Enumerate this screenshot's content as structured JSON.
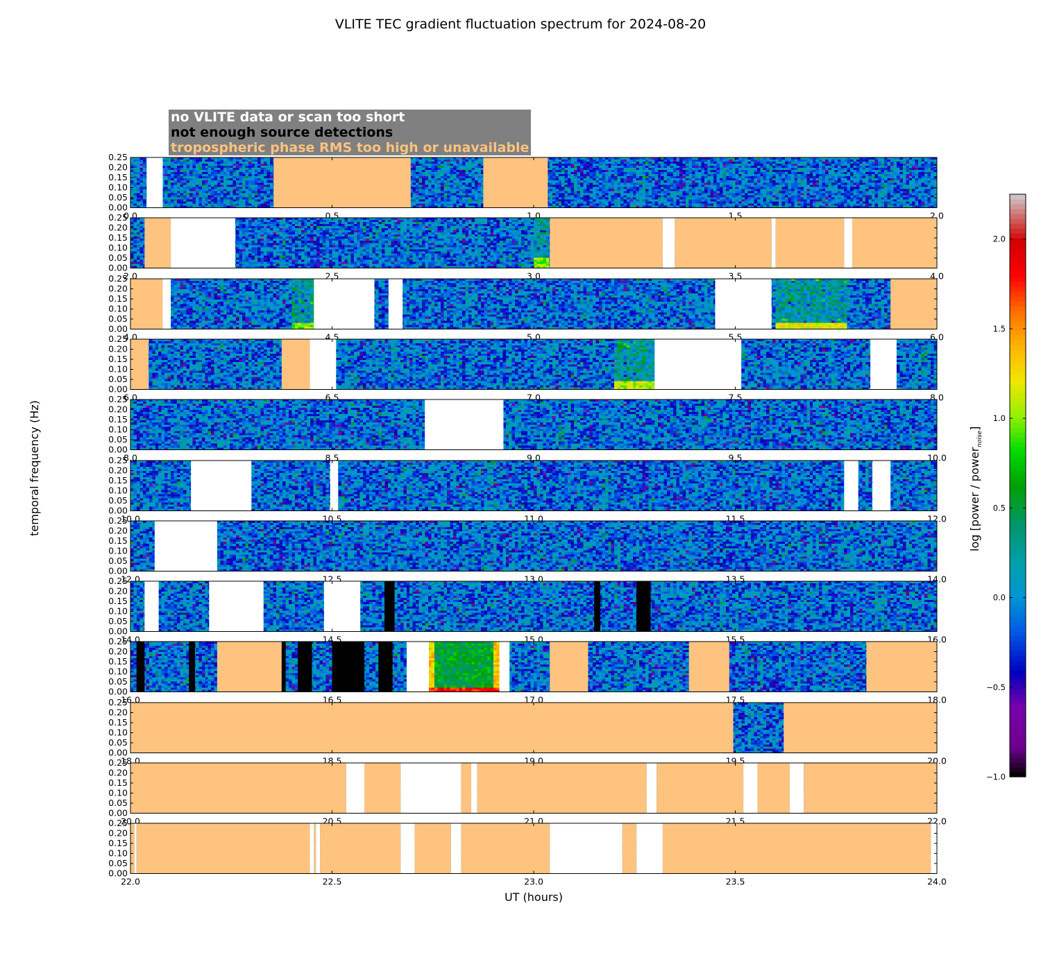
{
  "title": "VLITE TEC gradient fluctuation spectrum for 2024-08-20",
  "legend": {
    "no_data": "no VLITE data or scan too short",
    "no_sources": "not enough source detections",
    "tropo": "tropospheric phase RMS too high or unavailable",
    "colors": {
      "no_data": "#ffffff",
      "no_sources": "#000000",
      "tropo": "#fdc37f",
      "box": "#808080"
    }
  },
  "axes": {
    "xlabel": "UT (hours)",
    "ylabel": "temporal frequency (Hz)",
    "yticks": [
      "0.00",
      "0.05",
      "0.10",
      "0.15",
      "0.20",
      "0.25"
    ],
    "ylim": [
      0,
      0.25
    ]
  },
  "colorbar": {
    "label_main": "log [power / power",
    "label_sub": "noise",
    "label_end": "]",
    "ticks": [
      "−1.0",
      "−0.5",
      "0.0",
      "0.5",
      "1.0",
      "1.5",
      "2.0"
    ],
    "tick_values": [
      -1.0,
      -0.5,
      0.0,
      0.5,
      1.0,
      1.5,
      2.0
    ],
    "range": [
      -1.0,
      2.25
    ]
  },
  "chart_data": {
    "type": "heatmap",
    "title": "VLITE TEC gradient fluctuation spectrum for 2024-08-20",
    "xlabel": "UT (hours)",
    "ylabel": "temporal frequency (Hz)",
    "panels": [
      {
        "xlim": [
          0,
          2
        ],
        "xticks": [
          "0.0",
          "0.5",
          "1.0",
          "1.5",
          "2.0"
        ],
        "masks": [
          {
            "type": "nodata",
            "start": 0.04,
            "end": 0.08
          },
          {
            "type": "tropo",
            "start": 0.355,
            "end": 0.695
          },
          {
            "type": "tropo",
            "start": 0.875,
            "end": 1.035
          }
        ]
      },
      {
        "xlim": [
          2,
          4
        ],
        "xticks": [
          "2.0",
          "2.5",
          "3.0",
          "3.5",
          "4.0"
        ],
        "masks": [
          {
            "type": "tropo",
            "start": 2.035,
            "end": 2.1
          },
          {
            "type": "nodata",
            "start": 2.1,
            "end": 2.26
          },
          {
            "type": "tropo",
            "start": 3.04,
            "end": 3.32
          },
          {
            "type": "nodata",
            "start": 3.32,
            "end": 3.35
          },
          {
            "type": "tropo",
            "start": 3.35,
            "end": 3.59
          },
          {
            "type": "nodata",
            "start": 3.59,
            "end": 3.6
          },
          {
            "type": "tropo",
            "start": 3.6,
            "end": 3.77
          },
          {
            "type": "nodata",
            "start": 3.77,
            "end": 3.79
          },
          {
            "type": "tropo",
            "start": 3.79,
            "end": 4.0
          }
        ]
      },
      {
        "xlim": [
          4,
          6
        ],
        "xticks": [
          "4.0",
          "4.5",
          "5.0",
          "5.5",
          "6.0"
        ],
        "masks": [
          {
            "type": "tropo",
            "start": 4.0,
            "end": 4.08
          },
          {
            "type": "nodata",
            "start": 4.08,
            "end": 4.1
          },
          {
            "type": "nodata",
            "start": 4.455,
            "end": 4.605
          },
          {
            "type": "nodata",
            "start": 4.64,
            "end": 4.675
          },
          {
            "type": "nodata",
            "start": 5.45,
            "end": 5.59
          },
          {
            "type": "tropo",
            "start": 5.885,
            "end": 6.0
          }
        ]
      },
      {
        "xlim": [
          6,
          8
        ],
        "xticks": [
          "6.0",
          "6.5",
          "7.0",
          "7.5",
          "8.0"
        ],
        "masks": [
          {
            "type": "tropo",
            "start": 6.0,
            "end": 6.045
          },
          {
            "type": "tropo",
            "start": 6.375,
            "end": 6.445
          },
          {
            "type": "nodata",
            "start": 6.445,
            "end": 6.51
          },
          {
            "type": "nodata",
            "start": 7.3,
            "end": 7.515
          },
          {
            "type": "nodata",
            "start": 7.835,
            "end": 7.9
          }
        ]
      },
      {
        "xlim": [
          8,
          10
        ],
        "xticks": [
          "8.0",
          "8.5",
          "9.0",
          "9.5",
          "10.0"
        ],
        "masks": [
          {
            "type": "nodata",
            "start": 8.73,
            "end": 8.925
          }
        ]
      },
      {
        "xlim": [
          10,
          12
        ],
        "xticks": [
          "10.0",
          "10.5",
          "11.0",
          "11.5",
          "12.0"
        ],
        "masks": [
          {
            "type": "nodata",
            "start": 10.15,
            "end": 10.3
          },
          {
            "type": "nodata",
            "start": 10.495,
            "end": 10.515
          },
          {
            "type": "nodata",
            "start": 11.77,
            "end": 11.805
          },
          {
            "type": "nodata",
            "start": 11.84,
            "end": 11.885
          }
        ]
      },
      {
        "xlim": [
          12,
          14
        ],
        "xticks": [
          "12.0",
          "12.5",
          "13.0",
          "13.5",
          "14.0"
        ],
        "masks": [
          {
            "type": "nodata",
            "start": 12.06,
            "end": 12.215
          }
        ]
      },
      {
        "xlim": [
          14,
          16
        ],
        "xticks": [
          "14.0",
          "14.5",
          "15.0",
          "15.5",
          "16.0"
        ],
        "masks": [
          {
            "type": "nodata",
            "start": 14.035,
            "end": 14.07
          },
          {
            "type": "nodata",
            "start": 14.195,
            "end": 14.33
          },
          {
            "type": "nodata",
            "start": 14.48,
            "end": 14.57
          },
          {
            "type": "nosrc",
            "start": 14.63,
            "end": 14.655
          },
          {
            "type": "nosrc",
            "start": 15.15,
            "end": 15.165
          },
          {
            "type": "nosrc",
            "start": 15.255,
            "end": 15.29
          }
        ]
      },
      {
        "xlim": [
          16,
          18
        ],
        "xticks": [
          "16.0",
          "16.5",
          "17.0",
          "17.5",
          "18.0"
        ],
        "masks": [
          {
            "type": "nosrc",
            "start": 16.015,
            "end": 16.035
          },
          {
            "type": "nosrc",
            "start": 16.145,
            "end": 16.16
          },
          {
            "type": "tropo",
            "start": 16.215,
            "end": 16.375
          },
          {
            "type": "nosrc",
            "start": 16.375,
            "end": 16.385
          },
          {
            "type": "nosrc",
            "start": 16.415,
            "end": 16.45
          },
          {
            "type": "nosrc",
            "start": 16.5,
            "end": 16.58
          },
          {
            "type": "nosrc",
            "start": 16.615,
            "end": 16.65
          },
          {
            "type": "nodata",
            "start": 16.685,
            "end": 16.74
          },
          {
            "type": "nodata",
            "start": 16.915,
            "end": 16.94
          },
          {
            "type": "tropo",
            "start": 17.04,
            "end": 17.135
          },
          {
            "type": "tropo",
            "start": 17.385,
            "end": 17.485
          },
          {
            "type": "tropo",
            "start": 17.825,
            "end": 18.0
          }
        ]
      },
      {
        "xlim": [
          18,
          20
        ],
        "xticks": [
          "18.0",
          "18.5",
          "19.0",
          "19.5",
          "20.0"
        ],
        "masks": [
          {
            "type": "tropo",
            "start": 18.0,
            "end": 19.495
          },
          {
            "type": "tropo",
            "start": 19.62,
            "end": 20.0
          }
        ]
      },
      {
        "xlim": [
          20,
          22
        ],
        "xticks": [
          "20.0",
          "20.5",
          "21.0",
          "21.5",
          "22.0"
        ],
        "masks": [
          {
            "type": "tropo",
            "start": 20.0,
            "end": 20.535
          },
          {
            "type": "nodata",
            "start": 20.535,
            "end": 20.58
          },
          {
            "type": "tropo",
            "start": 20.58,
            "end": 20.67
          },
          {
            "type": "nodata",
            "start": 20.67,
            "end": 20.82
          },
          {
            "type": "tropo",
            "start": 20.82,
            "end": 20.845
          },
          {
            "type": "nodata",
            "start": 20.845,
            "end": 20.86
          },
          {
            "type": "tropo",
            "start": 20.86,
            "end": 21.28
          },
          {
            "type": "nodata",
            "start": 21.28,
            "end": 21.305
          },
          {
            "type": "tropo",
            "start": 21.305,
            "end": 21.52
          },
          {
            "type": "nodata",
            "start": 21.52,
            "end": 21.555
          },
          {
            "type": "tropo",
            "start": 21.555,
            "end": 21.635
          },
          {
            "type": "nodata",
            "start": 21.635,
            "end": 21.67
          },
          {
            "type": "tropo",
            "start": 21.67,
            "end": 22.0
          }
        ]
      },
      {
        "xlim": [
          22,
          24
        ],
        "xticks": [
          "22.0",
          "22.5",
          "23.0",
          "23.5",
          "24.0"
        ],
        "masks": [
          {
            "type": "tropo",
            "start": 22.0,
            "end": 22.01
          },
          {
            "type": "nodata",
            "start": 22.01,
            "end": 22.015
          },
          {
            "type": "tropo",
            "start": 22.015,
            "end": 22.445
          },
          {
            "type": "nodata",
            "start": 22.445,
            "end": 22.455
          },
          {
            "type": "tropo",
            "start": 22.455,
            "end": 22.46
          },
          {
            "type": "nodata",
            "start": 22.46,
            "end": 22.47
          },
          {
            "type": "tropo",
            "start": 22.47,
            "end": 22.67
          },
          {
            "type": "nodata",
            "start": 22.67,
            "end": 22.705
          },
          {
            "type": "tropo",
            "start": 22.705,
            "end": 22.795
          },
          {
            "type": "nodata",
            "start": 22.795,
            "end": 22.82
          },
          {
            "type": "tropo",
            "start": 22.82,
            "end": 23.04
          },
          {
            "type": "nodata",
            "start": 23.04,
            "end": 23.22
          },
          {
            "type": "tropo",
            "start": 23.22,
            "end": 23.255
          },
          {
            "type": "nodata",
            "start": 23.255,
            "end": 23.32
          },
          {
            "type": "tropo",
            "start": 23.32,
            "end": 23.985
          },
          {
            "type": "nodata",
            "start": 23.985,
            "end": 24.0
          }
        ]
      }
    ],
    "hotspots": [
      {
        "x": 16.74,
        "x2": 16.915,
        "level": 1.8,
        "depth": 0.02,
        "note": "strong low-frequency power"
      },
      {
        "x": 4.4,
        "x2": 4.46,
        "level": 1.0,
        "depth": 0.03
      },
      {
        "x": 5.6,
        "x2": 5.78,
        "level": 1.2,
        "depth": 0.03
      },
      {
        "x": 7.2,
        "x2": 7.3,
        "level": 1.1,
        "depth": 0.04
      },
      {
        "x": 3.0,
        "x2": 3.04,
        "level": 1.0,
        "depth": 0.05
      }
    ]
  }
}
